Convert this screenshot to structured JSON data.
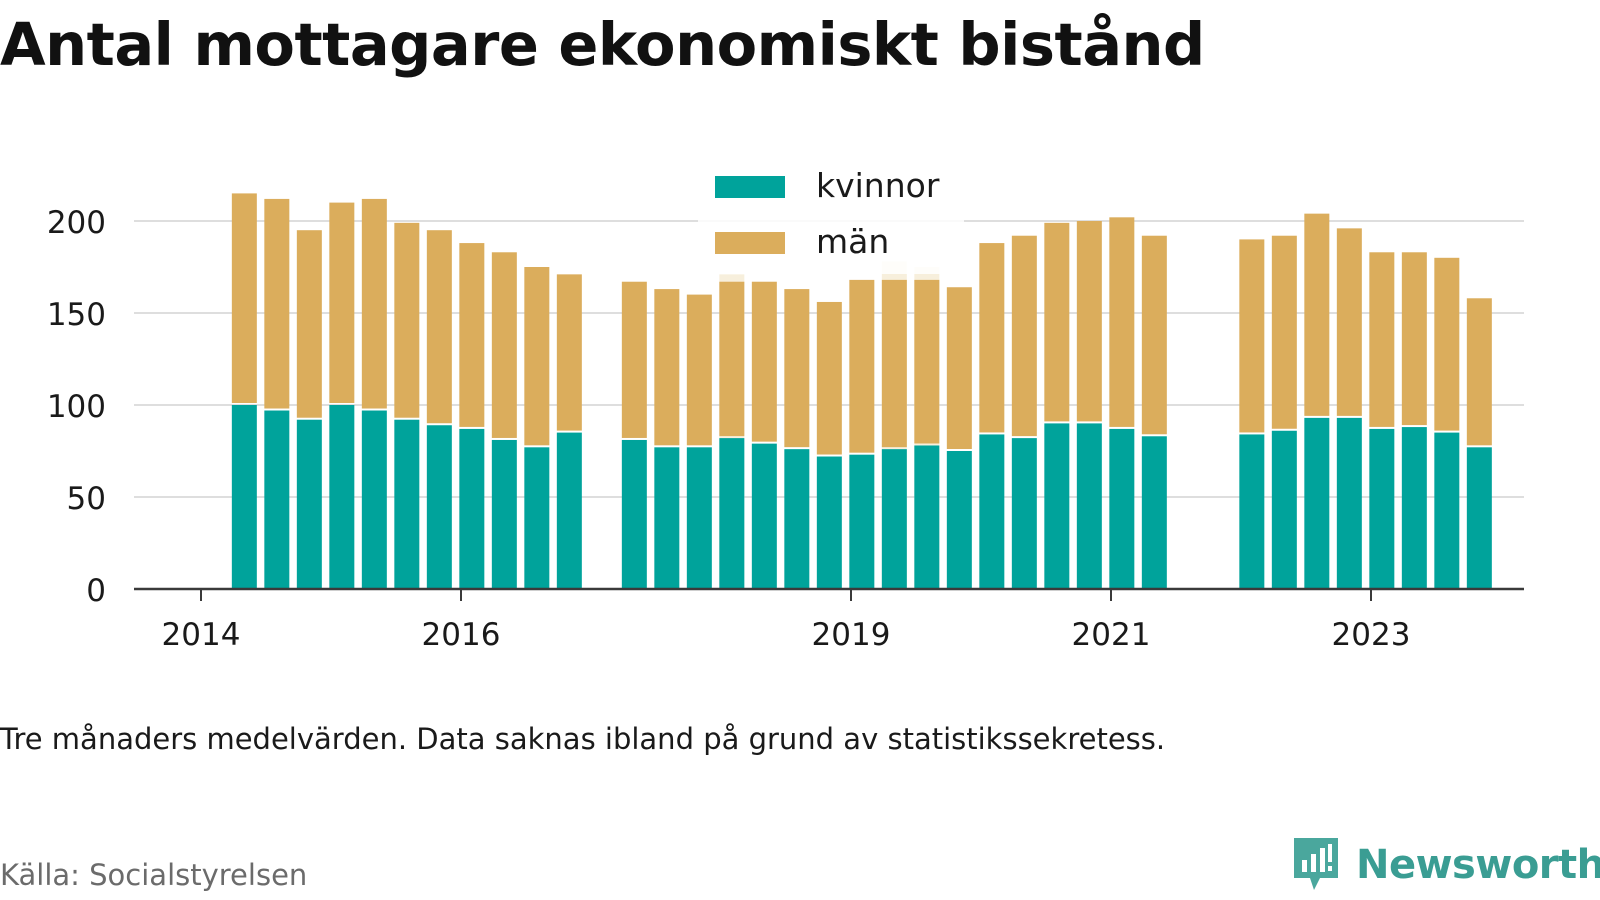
{
  "title": "Antal mottagare ekonomiskt bistånd",
  "subtitle": "Tre månaders medelvärden. Data saknas ibland på grund av statistikssekretess.",
  "source": "Källa: Socialstyrelsen",
  "brand": {
    "name": "Newsworthy",
    "icon": "newsworthy-logo-icon",
    "color": "#3a9d93"
  },
  "chart_data": {
    "type": "bar",
    "stacked": true,
    "grid": true,
    "legend_position": "top-center",
    "ylim": [
      0,
      220
    ],
    "yticks": [
      0,
      50,
      100,
      150,
      200
    ],
    "xticks": [
      {
        "label": "2014",
        "date": "2014-01"
      },
      {
        "label": "2016",
        "date": "2016-01"
      },
      {
        "label": "2019",
        "date": "2019-01"
      },
      {
        "label": "2021",
        "date": "2021-01"
      },
      {
        "label": "2023",
        "date": "2023-01"
      }
    ],
    "colors": {
      "kvinnor": "#00a39b",
      "män": "#dbad5c",
      "faded": "#f7efdc"
    },
    "dates": [
      "2014-05",
      "2014-08",
      "2014-11",
      "2015-02",
      "2015-05",
      "2015-08",
      "2015-11",
      "2016-02",
      "2016-05",
      "2016-08",
      "2016-11",
      "2017-05",
      "2017-08",
      "2017-11",
      "2018-02",
      "2018-05",
      "2018-08",
      "2018-11",
      "2019-02",
      "2019-05",
      "2019-08",
      "2019-11",
      "2020-02",
      "2020-05",
      "2020-08",
      "2020-11",
      "2021-02",
      "2021-05",
      "2022-02",
      "2022-05",
      "2022-08",
      "2022-11",
      "2023-02",
      "2023-05",
      "2023-08",
      "2023-11"
    ],
    "series": [
      {
        "name": "kvinnor",
        "values": [
          100,
          97,
          92,
          100,
          97,
          92,
          89,
          87,
          81,
          77,
          85,
          81,
          77,
          77,
          82,
          79,
          76,
          72,
          73,
          76,
          78,
          75,
          84,
          82,
          90,
          90,
          87,
          83,
          84,
          86,
          93,
          93,
          87,
          88,
          85,
          77
        ]
      },
      {
        "name": "män",
        "values": [
          115,
          115,
          103,
          110,
          115,
          107,
          106,
          101,
          102,
          98,
          86,
          86,
          86,
          83,
          85,
          88,
          87,
          84,
          95,
          92,
          90,
          89,
          104,
          110,
          109,
          110,
          115,
          109,
          106,
          106,
          111,
          103,
          96,
          95,
          95,
          81
        ]
      }
    ],
    "faded_totals": [
      {
        "date": "2018-02",
        "value": 171
      },
      {
        "date": "2019-05",
        "value": 178
      },
      {
        "date": "2019-08",
        "value": 175
      }
    ]
  }
}
